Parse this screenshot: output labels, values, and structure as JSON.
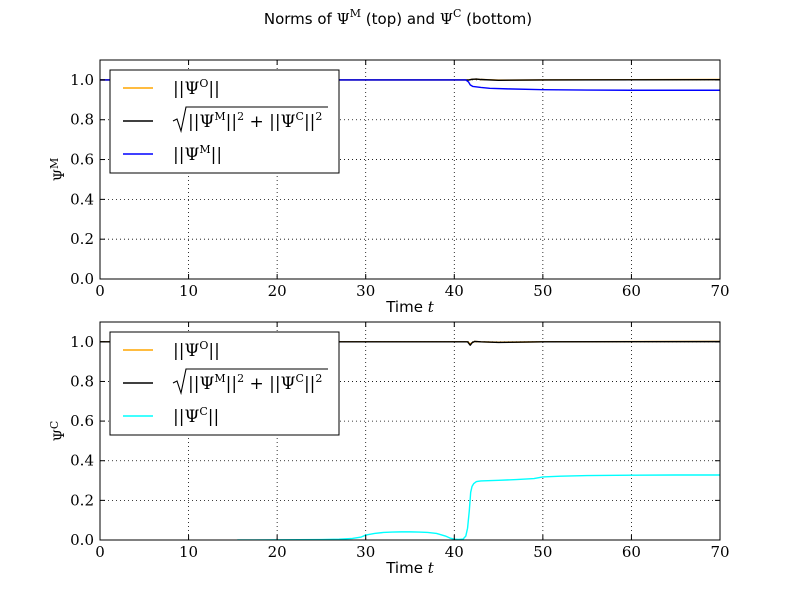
{
  "figure": {
    "title_prefix": "Norms of ",
    "title_m_base": "Ψ",
    "title_m_sup": "M",
    "title_mid": " (top) and ",
    "title_c_base": "Ψ",
    "title_c_sup": "C",
    "title_suffix": " (bottom)"
  },
  "colors": {
    "orange": "#ffa500",
    "black": "#000000",
    "blue": "#0000ff",
    "cyan": "#00ffff"
  },
  "chart_data": [
    {
      "type": "line",
      "title": "",
      "xlabel": "Time t",
      "xlabel_text": "Time",
      "xlabel_var": "t",
      "ylabel": "Ψ^M",
      "ylabel_base": "Ψ",
      "ylabel_sup": "M",
      "xlim": [
        0,
        70
      ],
      "ylim": [
        0.0,
        1.1
      ],
      "xticks": [
        0,
        10,
        20,
        30,
        40,
        50,
        60,
        70
      ],
      "xtick_labels": [
        "0",
        "10",
        "20",
        "30",
        "40",
        "50",
        "60",
        "70"
      ],
      "yticks": [
        0.0,
        0.2,
        0.4,
        0.6,
        0.8,
        1.0
      ],
      "ytick_labels": [
        "0.0",
        "0.2",
        "0.4",
        "0.6",
        "0.8",
        "1.0"
      ],
      "grid": true,
      "legend_position": "top-left",
      "legend": [
        {
          "label": "||Ψ^O||",
          "color_key": "orange"
        },
        {
          "label": "sqrt(||Ψ^M||^2 + ||Ψ^C||^2)",
          "color_key": "black"
        },
        {
          "label": "||Ψ^M||",
          "color_key": "blue"
        }
      ],
      "series": [
        {
          "name": "||Ψ^O||",
          "color_key": "orange",
          "x": [
            0,
            41.4,
            41.6,
            42,
            42.5,
            43,
            45,
            50,
            70
          ],
          "y": [
            1.0,
            1.0,
            1.0,
            1.003,
            1.004,
            1.002,
            0.999,
            1.0,
            1.002
          ]
        },
        {
          "name": "sqrt(||Ψ^M||^2 + ||Ψ^C||^2)",
          "color_key": "black",
          "x": [
            0,
            41.4,
            41.6,
            42,
            42.5,
            43,
            45,
            50,
            70
          ],
          "y": [
            1.0,
            1.0,
            0.999,
            1.003,
            1.004,
            1.002,
            0.998,
            1.0,
            1.001
          ]
        },
        {
          "name": "||Ψ^M||",
          "color_key": "blue",
          "x": [
            0,
            41.3,
            41.6,
            41.8,
            42.1,
            43,
            44,
            46,
            50,
            55,
            60,
            70
          ],
          "y": [
            1.0,
            1.0,
            0.99,
            0.975,
            0.967,
            0.962,
            0.958,
            0.955,
            0.951,
            0.949,
            0.948,
            0.948
          ]
        }
      ]
    },
    {
      "type": "line",
      "title": "",
      "xlabel": "Time t",
      "xlabel_text": "Time",
      "xlabel_var": "t",
      "ylabel": "Ψ^C",
      "ylabel_base": "Ψ",
      "ylabel_sup": "C",
      "xlim": [
        0,
        70
      ],
      "ylim": [
        0.0,
        1.1
      ],
      "xticks": [
        0,
        10,
        20,
        30,
        40,
        50,
        60,
        70
      ],
      "xtick_labels": [
        "0",
        "10",
        "20",
        "30",
        "40",
        "50",
        "60",
        "70"
      ],
      "yticks": [
        0.0,
        0.2,
        0.4,
        0.6,
        0.8,
        1.0
      ],
      "ytick_labels": [
        "0.0",
        "0.2",
        "0.4",
        "0.6",
        "0.8",
        "1.0"
      ],
      "grid": true,
      "legend_position": "top-left",
      "legend": [
        {
          "label": "||Ψ^O||",
          "color_key": "orange"
        },
        {
          "label": "sqrt(||Ψ^M||^2 + ||Ψ^C||^2)",
          "color_key": "black"
        },
        {
          "label": "||Ψ^C||",
          "color_key": "cyan"
        }
      ],
      "series": [
        {
          "name": "||Ψ^O||",
          "color_key": "orange",
          "x": [
            0,
            41.5,
            41.8,
            42,
            42.3,
            43,
            45,
            50,
            70
          ],
          "y": [
            1.0,
            1.0,
            0.99,
            0.995,
            1.002,
            1.0,
            0.998,
            1.0,
            1.002
          ]
        },
        {
          "name": "sqrt(||Ψ^M||^2 + ||Ψ^C||^2)",
          "color_key": "black",
          "x": [
            0,
            41.5,
            41.8,
            42,
            42.3,
            43,
            45,
            50,
            70
          ],
          "y": [
            1.0,
            1.0,
            0.983,
            0.995,
            1.002,
            1.0,
            0.997,
            1.0,
            1.001
          ]
        },
        {
          "name": "||Ψ^C||",
          "color_key": "cyan",
          "x": [
            15.5,
            20,
            25,
            27,
            28.5,
            29.5,
            30,
            31,
            32,
            33,
            34,
            35,
            36,
            37,
            38,
            39,
            39.5,
            40,
            40.5,
            41,
            41.3,
            41.5,
            41.7,
            41.85,
            42,
            42.2,
            42.5,
            43,
            45,
            47,
            49,
            50,
            52,
            55,
            60,
            65,
            70
          ],
          "y": [
            0.0,
            0.001,
            0.002,
            0.004,
            0.008,
            0.015,
            0.025,
            0.033,
            0.038,
            0.04,
            0.041,
            0.041,
            0.04,
            0.038,
            0.033,
            0.02,
            0.01,
            0.004,
            0.003,
            0.005,
            0.02,
            0.06,
            0.15,
            0.24,
            0.27,
            0.285,
            0.295,
            0.298,
            0.301,
            0.305,
            0.31,
            0.318,
            0.322,
            0.325,
            0.327,
            0.328,
            0.328
          ]
        }
      ]
    }
  ]
}
